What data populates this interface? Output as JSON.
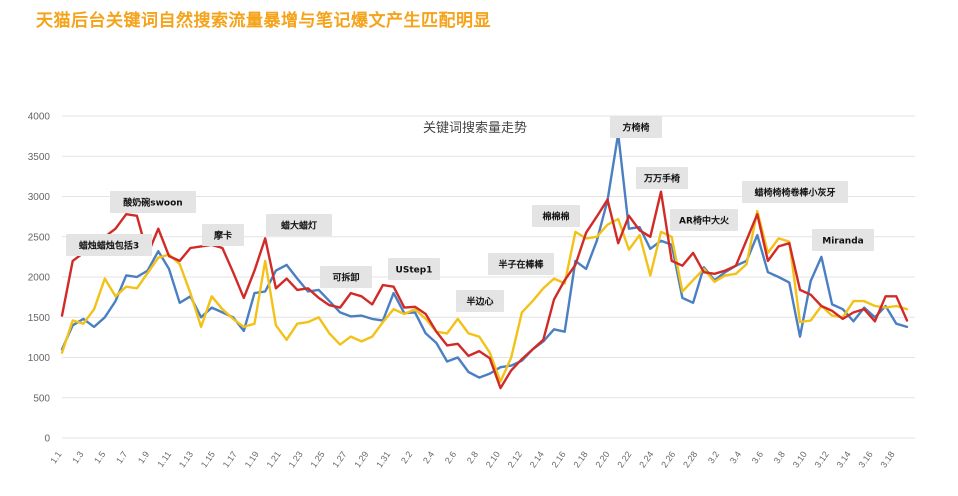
{
  "page": {
    "title": "天猫后台关键词自然搜索流量暴增与笔记爆文产生匹配明显"
  },
  "chart_data": {
    "type": "line",
    "title": "关键词搜索量走势",
    "xlabel": "",
    "ylabel": "",
    "ylim": [
      0,
      4000
    ],
    "yticks": [
      0,
      500,
      1000,
      1500,
      2000,
      2500,
      3000,
      3500,
      4000
    ],
    "grid": true,
    "x_tick_labels": [
      "1.1",
      "1.3",
      "1.5",
      "1.7",
      "1.9",
      "1.11",
      "1.13",
      "1.15",
      "1.17",
      "1.19",
      "1.21",
      "1.23",
      "1.25",
      "1.27",
      "1.29",
      "1.31",
      "2.2",
      "2.4",
      "2.6",
      "2.8",
      "2.10",
      "2.12",
      "2.14",
      "2.16",
      "2.18",
      "2.20",
      "2.22",
      "2.24",
      "2.26",
      "2.28",
      "3.2",
      "3.4",
      "3.6",
      "3.8",
      "3.10",
      "3.12",
      "3.14",
      "3.16",
      "3.18"
    ],
    "series": [
      {
        "name": "blue",
        "color": "#4a7fc1",
        "values": [
          1100,
          1400,
          1480,
          1380,
          1500,
          1700,
          2020,
          2000,
          2080,
          2320,
          2100,
          1680,
          1760,
          1500,
          1620,
          1560,
          1500,
          1330,
          1800,
          1820,
          2080,
          2150,
          1980,
          1820,
          1840,
          1700,
          1560,
          1510,
          1520,
          1480,
          1460,
          1800,
          1550,
          1560,
          1300,
          1180,
          950,
          1000,
          820,
          750,
          800,
          880,
          900,
          960,
          1100,
          1200,
          1350,
          1320,
          2200,
          2100,
          2450,
          2950,
          3780,
          2600,
          2620,
          2350,
          2450,
          2400,
          1740,
          1680,
          2120,
          1960,
          2060,
          2140,
          2200,
          2520,
          2060,
          2000,
          1930,
          1260,
          1950,
          2250,
          1660,
          1600,
          1450,
          1620,
          1500,
          1640,
          1420,
          1380
        ],
        "labels": []
      },
      {
        "name": "red",
        "color": "#d12b28",
        "values": [
          1520,
          2200,
          2300,
          2360,
          2500,
          2600,
          2780,
          2760,
          2280,
          2600,
          2260,
          2200,
          2360,
          2380,
          2400,
          2360,
          2060,
          1740,
          2080,
          2480,
          1860,
          1980,
          1840,
          1860,
          1740,
          1650,
          1620,
          1800,
          1760,
          1660,
          1900,
          1880,
          1620,
          1630,
          1540,
          1320,
          1150,
          1170,
          1020,
          1080,
          990,
          620,
          840,
          980,
          1100,
          1220,
          1720,
          1960,
          2150,
          2550,
          2750,
          2960,
          2420,
          2760,
          2580,
          2500,
          3060,
          2200,
          2140,
          2300,
          2060,
          2040,
          2080,
          2140,
          2460,
          2780,
          2200,
          2380,
          2420,
          1840,
          1780,
          1640,
          1580,
          1480,
          1560,
          1600,
          1450,
          1760,
          1760,
          1460
        ],
        "labels": []
      },
      {
        "name": "yellow",
        "color": "#f2c218",
        "values": [
          1060,
          1460,
          1420,
          1600,
          1980,
          1760,
          1880,
          1860,
          2050,
          2240,
          2280,
          2160,
          1800,
          1380,
          1760,
          1600,
          1480,
          1380,
          1420,
          2200,
          1400,
          1220,
          1420,
          1440,
          1500,
          1300,
          1160,
          1260,
          1200,
          1260,
          1440,
          1600,
          1540,
          1600,
          1480,
          1320,
          1300,
          1480,
          1300,
          1260,
          1060,
          700,
          1000,
          1560,
          1700,
          1860,
          1980,
          1920,
          2560,
          2480,
          2500,
          2650,
          2720,
          2340,
          2520,
          2020,
          2560,
          2500,
          1820,
          1960,
          2100,
          1940,
          2020,
          2040,
          2160,
          2820,
          2300,
          2480,
          2440,
          1440,
          1460,
          1640,
          1520,
          1500,
          1700,
          1700,
          1640,
          1620,
          1640,
          1600
        ],
        "labels": []
      }
    ],
    "annotations": [
      "蜡烛蜡烛包括3",
      "酸奶碗swoon",
      "摩卡",
      "蜡大蜡灯",
      "可拆卸",
      "UStep1",
      "半边心",
      "半子在棒棒",
      "棉棉棉",
      "方椅椅",
      "万万手椅",
      "AR椅中大火",
      "蜡椅椅椅卷棒小灰牙",
      "Miranda"
    ]
  }
}
